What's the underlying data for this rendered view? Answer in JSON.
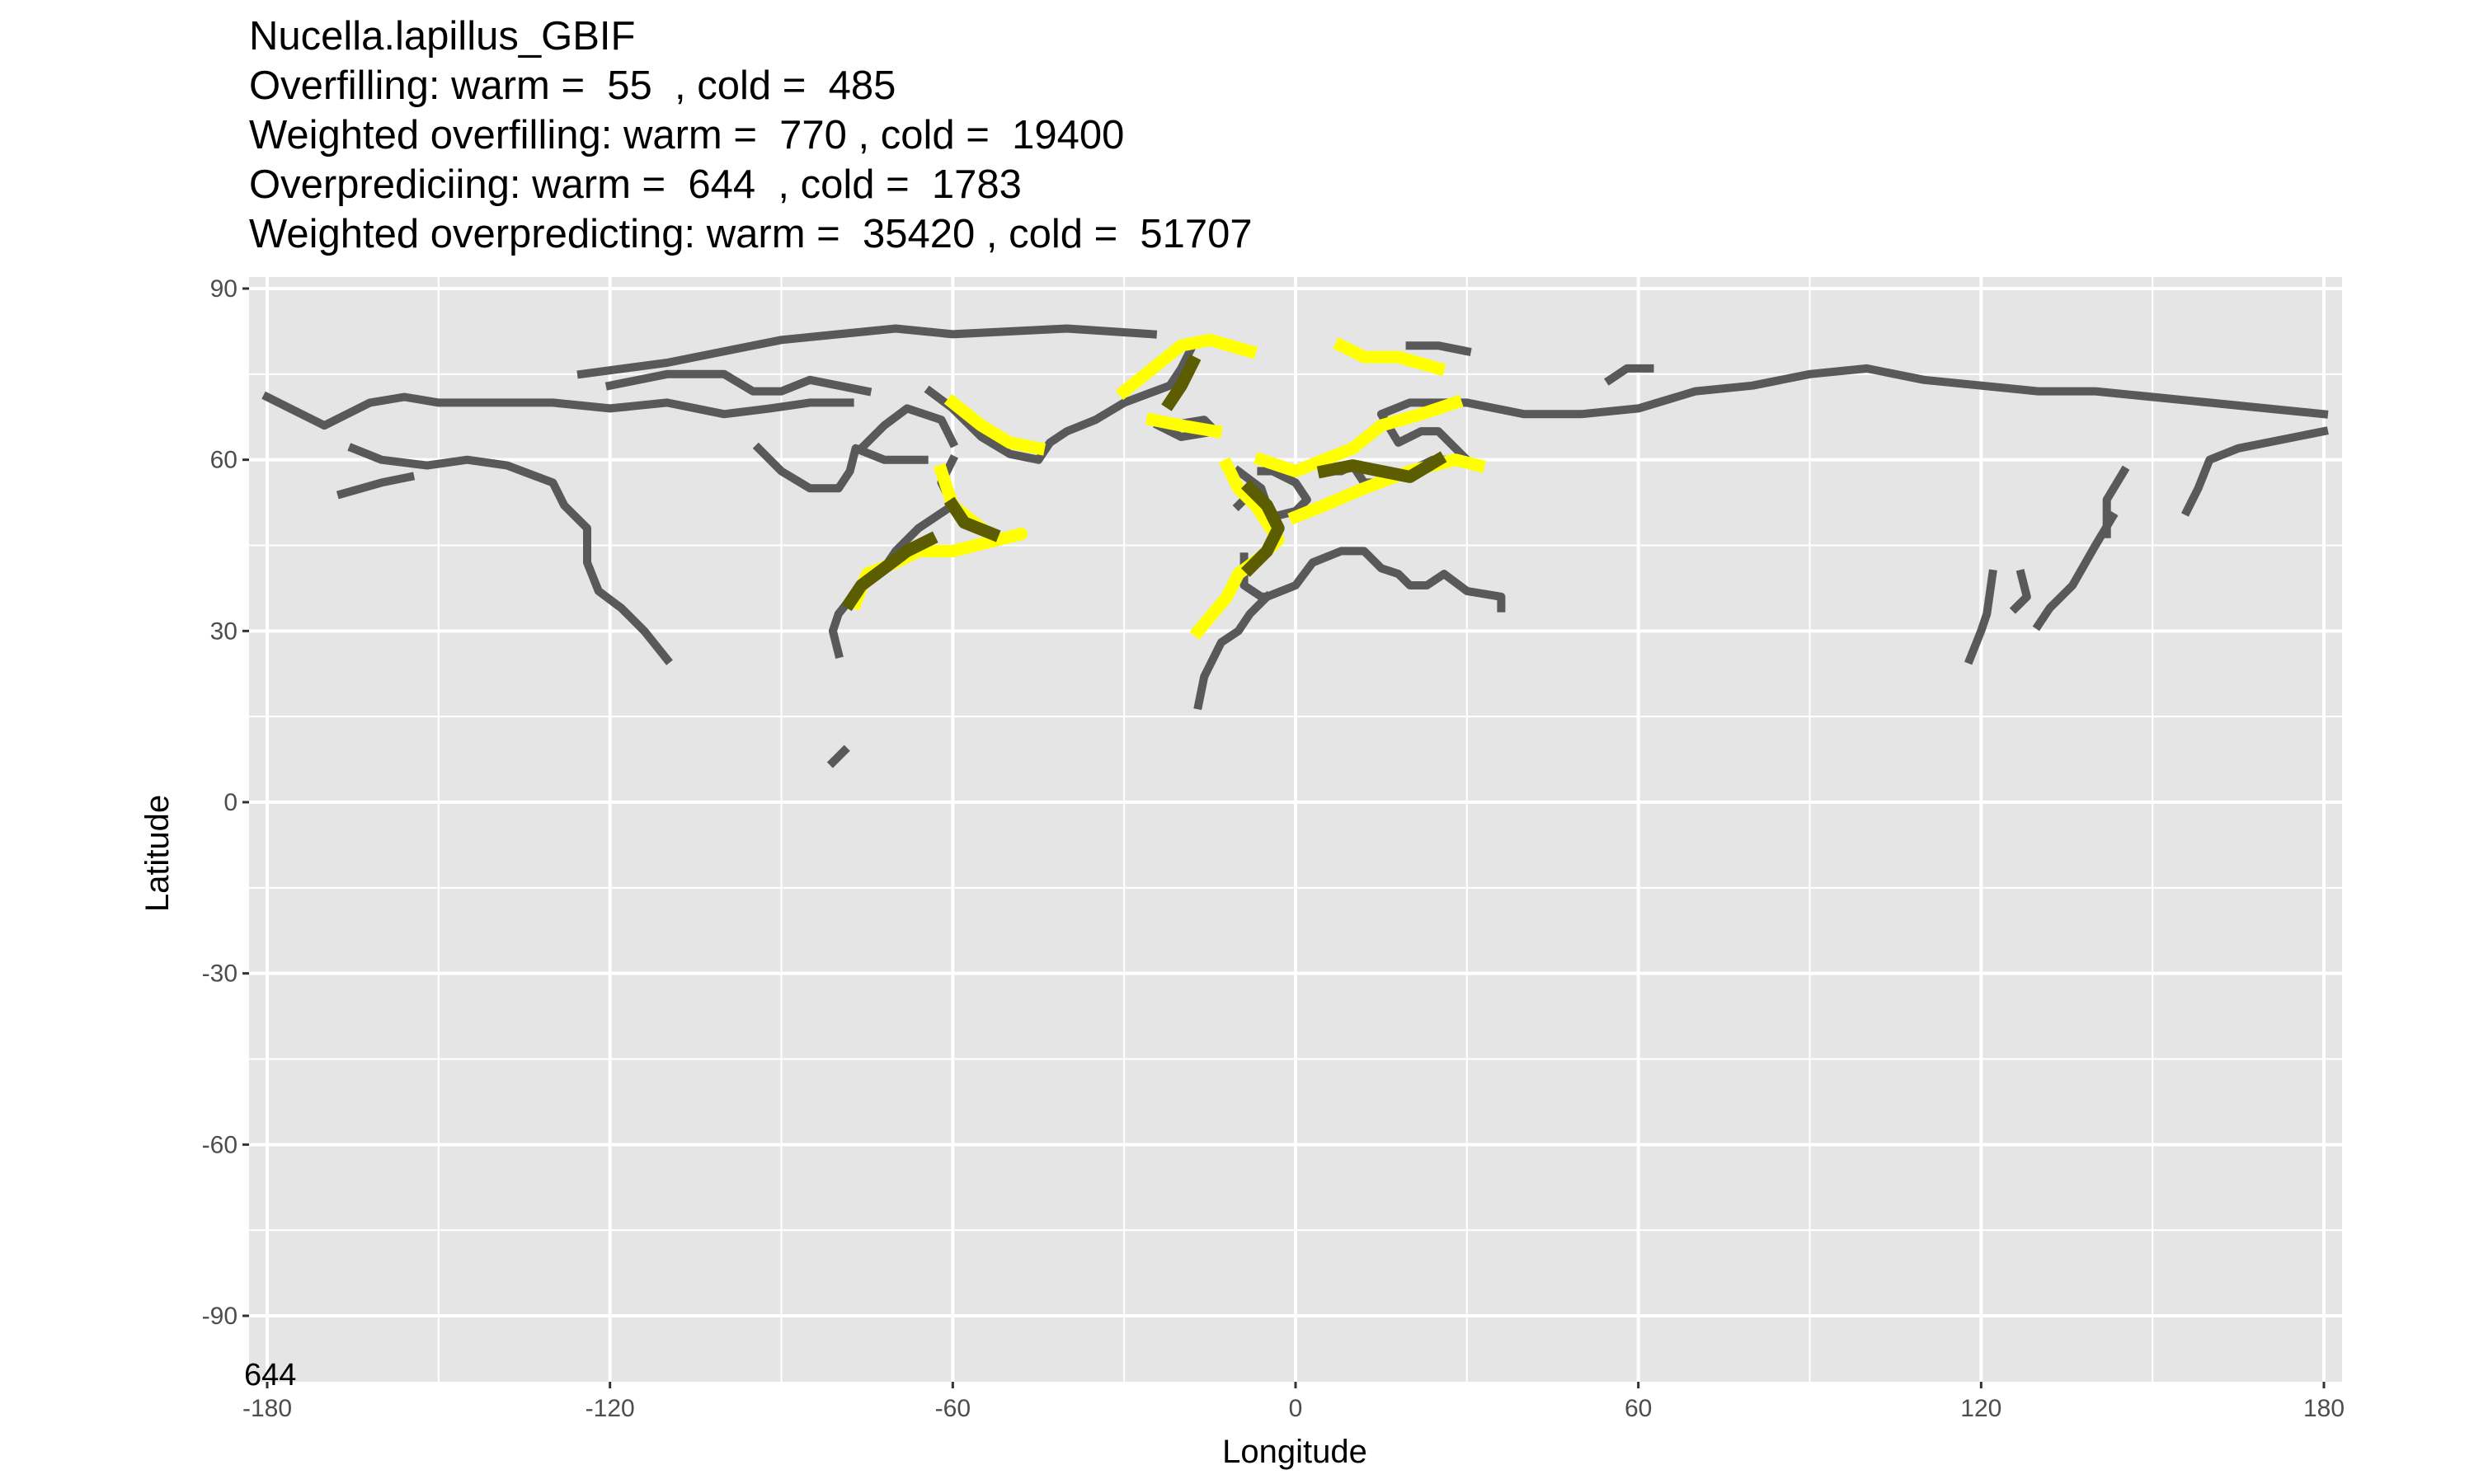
{
  "title": {
    "lines": [
      "Nucella.lapillus_GBIF",
      "Overfilling: warm =  55  , cold =  485",
      "Weighted overfilling: warm =  770 , cold =  19400",
      "Overprediciing: warm =  644  , cold =  1783",
      "Weighted overpredicting: warm =  35420 , cold =  51707"
    ]
  },
  "corner_label": "644",
  "chart_data": {
    "type": "map",
    "xlabel": "Longitude",
    "ylabel": "Latitude",
    "xlim": [
      -180,
      180
    ],
    "ylim": [
      -90,
      90
    ],
    "x_ticks": [
      -180,
      -120,
      -60,
      0,
      60,
      120,
      180
    ],
    "y_ticks": [
      90,
      60,
      30,
      0,
      -30,
      -60,
      -90
    ],
    "grid": true,
    "colors": {
      "panel_background": "#e5e5e5",
      "grid": "#ffffff",
      "coastline_cells": "#595959",
      "predicted_range": "#ffff00",
      "overlap": "#5c5c00"
    },
    "layers": [
      {
        "name": "coastline",
        "color": "#595959",
        "polylines": [
          [
            [
              -180,
              71
            ],
            [
              -170,
              66
            ],
            [
              -162,
              70
            ],
            [
              -156,
              71
            ],
            [
              -150,
              70
            ],
            [
              -140,
              70
            ],
            [
              -130,
              70
            ],
            [
              -120,
              69
            ],
            [
              -110,
              70
            ],
            [
              -100,
              68
            ],
            [
              -92,
              69
            ],
            [
              -85,
              70
            ],
            [
              -78,
              70
            ]
          ],
          [
            [
              -165,
              62
            ],
            [
              -160,
              60
            ],
            [
              -152,
              59
            ],
            [
              -145,
              60
            ],
            [
              -138,
              59
            ],
            [
              -130,
              56
            ],
            [
              -128,
              52
            ],
            [
              -124,
              48
            ],
            [
              -124,
              42
            ],
            [
              -122,
              37
            ],
            [
              -118,
              34
            ],
            [
              -114,
              30
            ],
            [
              -110,
              25
            ]
          ],
          [
            [
              -167,
              54
            ],
            [
              -160,
              56
            ],
            [
              -155,
              57
            ]
          ],
          [
            [
              -125,
              75
            ],
            [
              -110,
              77
            ],
            [
              -100,
              79
            ],
            [
              -90,
              81
            ],
            [
              -80,
              82
            ],
            [
              -70,
              83
            ],
            [
              -60,
              82
            ],
            [
              -40,
              83
            ],
            [
              -25,
              82
            ]
          ],
          [
            [
              -120,
              73
            ],
            [
              -110,
              75
            ],
            [
              -100,
              75
            ],
            [
              -95,
              72
            ],
            [
              -90,
              72
            ],
            [
              -85,
              74
            ],
            [
              -80,
              73
            ],
            [
              -75,
              72
            ]
          ],
          [
            [
              -94,
              62
            ],
            [
              -90,
              58
            ],
            [
              -85,
              55
            ],
            [
              -80,
              55
            ],
            [
              -78,
              58
            ],
            [
              -77,
              62
            ],
            [
              -72,
              60
            ],
            [
              -65,
              60
            ]
          ],
          [
            [
              -76,
              62
            ],
            [
              -72,
              66
            ],
            [
              -68,
              69
            ],
            [
              -62,
              67
            ],
            [
              -60,
              63
            ]
          ],
          [
            [
              -60,
              60
            ],
            [
              -62,
              56
            ],
            [
              -60,
              52
            ],
            [
              -66,
              48
            ],
            [
              -70,
              44
            ],
            [
              -72,
              41
            ],
            [
              -76,
              38
            ],
            [
              -80,
              33
            ],
            [
              -81,
              30
            ],
            [
              -80,
              26
            ]
          ],
          [
            [
              -64,
              72
            ],
            [
              -60,
              69
            ],
            [
              -55,
              64
            ],
            [
              -50,
              61
            ],
            [
              -45,
              60
            ],
            [
              -43,
              63
            ],
            [
              -40,
              65
            ],
            [
              -35,
              67
            ],
            [
              -30,
              70
            ],
            [
              -22,
              73
            ],
            [
              -20,
              76
            ],
            [
              -18,
              80
            ]
          ],
          [
            [
              -24,
              66
            ],
            [
              -20,
              64
            ],
            [
              -14,
              65
            ],
            [
              -16,
              67
            ],
            [
              -22,
              66
            ]
          ],
          [
            [
              -10,
              58
            ],
            [
              -6,
              55
            ],
            [
              -5,
              52
            ],
            [
              -4,
              50
            ],
            [
              0,
              51
            ],
            [
              2,
              53
            ],
            [
              0,
              56
            ],
            [
              -4,
              58
            ],
            [
              -6,
              58
            ]
          ],
          [
            [
              -10,
              52
            ],
            [
              -8,
              54
            ],
            [
              -6,
              54
            ],
            [
              -6,
              52
            ]
          ],
          [
            [
              -9,
              43
            ],
            [
              -9,
              38
            ],
            [
              -6,
              36
            ],
            [
              -5,
              36
            ],
            [
              0,
              38
            ],
            [
              3,
              42
            ],
            [
              8,
              44
            ],
            [
              12,
              44
            ],
            [
              15,
              41
            ],
            [
              18,
              40
            ],
            [
              20,
              38
            ],
            [
              23,
              38
            ],
            [
              26,
              40
            ],
            [
              30,
              37
            ],
            [
              36,
              36
            ],
            [
              36,
              34
            ]
          ],
          [
            [
              -5,
              36
            ],
            [
              -8,
              33
            ],
            [
              -10,
              30
            ],
            [
              -13,
              28
            ],
            [
              -16,
              22
            ],
            [
              -17,
              17
            ]
          ],
          [
            [
              5,
              60
            ],
            [
              5,
              58
            ],
            [
              8,
              58
            ],
            [
              10,
              59
            ],
            [
              12,
              56
            ],
            [
              15,
              56
            ],
            [
              20,
              58
            ],
            [
              24,
              60
            ],
            [
              30,
              60
            ],
            [
              25,
              65
            ],
            [
              22,
              65
            ],
            [
              18,
              63
            ],
            [
              15,
              68
            ],
            [
              20,
              70
            ],
            [
              30,
              70
            ],
            [
              40,
              68
            ],
            [
              50,
              68
            ],
            [
              60,
              69
            ],
            [
              70,
              72
            ],
            [
              80,
              73
            ],
            [
              90,
              75
            ],
            [
              100,
              76
            ],
            [
              110,
              74
            ],
            [
              120,
              73
            ],
            [
              130,
              72
            ],
            [
              140,
              72
            ],
            [
              150,
              71
            ],
            [
              160,
              70
            ],
            [
              170,
              69
            ],
            [
              180,
              68
            ]
          ],
          [
            [
              20,
              80
            ],
            [
              25,
              80
            ],
            [
              30,
              79
            ]
          ],
          [
            [
              55,
              74
            ],
            [
              58,
              76
            ],
            [
              62,
              76
            ]
          ],
          [
            [
              180,
              65
            ],
            [
              175,
              64
            ],
            [
              165,
              62
            ],
            [
              160,
              60
            ],
            [
              158,
              55
            ],
            [
              156,
              51
            ]
          ],
          [
            [
              145,
              58
            ],
            [
              142,
              53
            ],
            [
              142,
              47
            ]
          ],
          [
            [
              143,
              50
            ],
            [
              140,
              45
            ],
            [
              136,
              38
            ],
            [
              132,
              34
            ],
            [
              130,
              31
            ]
          ],
          [
            [
              127,
              40
            ],
            [
              128,
              36
            ],
            [
              126,
              34
            ]
          ],
          [
            [
              122,
              40
            ],
            [
              121,
              33
            ],
            [
              120,
              30
            ],
            [
              118,
              25
            ]
          ],
          [
            [
              -81,
              7
            ],
            [
              -79,
              9
            ]
          ]
        ]
      },
      {
        "name": "predicted_range",
        "color": "#ffff00",
        "polylines": [
          [
            [
              -60,
              70
            ],
            [
              -55,
              66
            ],
            [
              -50,
              63
            ],
            [
              -45,
              62
            ]
          ],
          [
            [
              -62,
              58
            ],
            [
              -60,
              52
            ],
            [
              -55,
              48
            ],
            [
              -52,
              46
            ],
            [
              -48,
              47
            ],
            [
              -60,
              44
            ],
            [
              -66,
              44
            ],
            [
              -70,
              42
            ],
            [
              -75,
              40
            ],
            [
              -77,
              35
            ]
          ],
          [
            [
              -30,
              72
            ],
            [
              -25,
              76
            ],
            [
              -20,
              80
            ],
            [
              -15,
              81
            ],
            [
              -8,
              79
            ]
          ],
          [
            [
              -25,
              67
            ],
            [
              -20,
              66
            ],
            [
              -14,
              65
            ]
          ],
          [
            [
              -12,
              59
            ],
            [
              -10,
              55
            ],
            [
              -7,
              52
            ],
            [
              -5,
              49
            ],
            [
              -3,
              46
            ],
            [
              -6,
              43
            ],
            [
              -10,
              40
            ],
            [
              -12,
              36
            ],
            [
              -17,
              30
            ]
          ],
          [
            [
              -6,
              60
            ],
            [
              0,
              58
            ],
            [
              5,
              60
            ],
            [
              10,
              62
            ],
            [
              15,
              66
            ],
            [
              22,
              68
            ],
            [
              28,
              70
            ]
          ],
          [
            [
              8,
              80
            ],
            [
              12,
              78
            ],
            [
              18,
              78
            ],
            [
              25,
              76
            ]
          ],
          [
            [
              0,
              50
            ],
            [
              5,
              52
            ],
            [
              12,
              55
            ],
            [
              20,
              58
            ],
            [
              28,
              60
            ],
            [
              32,
              59
            ]
          ]
        ]
      },
      {
        "name": "overlap",
        "color": "#5c5c00",
        "polylines": [
          [
            [
              -64,
              46
            ],
            [
              -68,
              44
            ],
            [
              -72,
              41
            ],
            [
              -76,
              38
            ],
            [
              -78,
              35
            ]
          ],
          [
            [
              -60,
              52
            ],
            [
              -58,
              49
            ],
            [
              -53,
              47
            ]
          ],
          [
            [
              -22,
              70
            ],
            [
              -20,
              73
            ],
            [
              -18,
              77
            ]
          ],
          [
            [
              -8,
              55
            ],
            [
              -5,
              52
            ],
            [
              -3,
              48
            ],
            [
              -5,
              44
            ],
            [
              -8,
              41
            ]
          ],
          [
            [
              5,
              58
            ],
            [
              10,
              59
            ],
            [
              15,
              58
            ],
            [
              20,
              57
            ],
            [
              25,
              60
            ]
          ]
        ]
      }
    ]
  }
}
